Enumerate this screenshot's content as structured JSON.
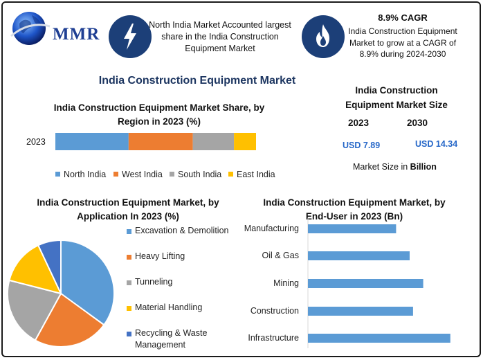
{
  "logo": {
    "text": "MMR"
  },
  "highlights": [
    {
      "icon": "lightning-icon",
      "text": "North India Market Accounted largest share in the India Construction Equipment Market"
    },
    {
      "icon": "flame-icon",
      "title": "8.9% CAGR",
      "text": "India Construction Equipment Market to grow at a CAGR of 8.9% during 2024-2030"
    }
  ],
  "main_title": "India Construction Equipment Market",
  "market_size": {
    "title": "India Construction Equipment Market Size",
    "years": [
      "2023",
      "2030"
    ],
    "values": [
      "USD 7.89",
      "USD 14.34"
    ],
    "note_prefix": "Market Size in ",
    "note_unit": "Billion"
  },
  "colors": {
    "blue": "#5b9bd5",
    "orange": "#ed7d31",
    "gray": "#a5a5a5",
    "yellow": "#ffc000",
    "darkblue": "#4472c4",
    "accent": "#1c3f78"
  },
  "chart_data": [
    {
      "type": "bar",
      "orientation": "horizontal-stacked",
      "title": "India Construction Equipment Market Share, by Region in 2023 (%)",
      "categories": [
        "2023"
      ],
      "series": [
        {
          "name": "North India",
          "values": [
            36.5
          ]
        },
        {
          "name": "West India",
          "values": [
            32
          ]
        },
        {
          "name": "South India",
          "values": [
            20.5
          ]
        },
        {
          "name": "East India",
          "values": [
            11
          ]
        }
      ],
      "legend": "bottom"
    },
    {
      "type": "pie",
      "title": "India Construction Equipment Market, by Application In 2023 (%)",
      "labels": [
        "Excavation & Demolition",
        "Heavy Lifting",
        "Tunneling",
        "Material Handling",
        "Recycling & Waste Management"
      ],
      "values": [
        35,
        23,
        21,
        14,
        7
      ],
      "legend": "right"
    },
    {
      "type": "bar",
      "orientation": "horizontal",
      "title": "India Construction Equipment Market, by End-User in 2023 (Bn)",
      "categories": [
        "Manufacturing",
        "Oil & Gas",
        "Mining",
        "Construction",
        "Infrastructure"
      ],
      "values": [
        1.3,
        1.5,
        1.7,
        1.55,
        2.1
      ]
    }
  ]
}
